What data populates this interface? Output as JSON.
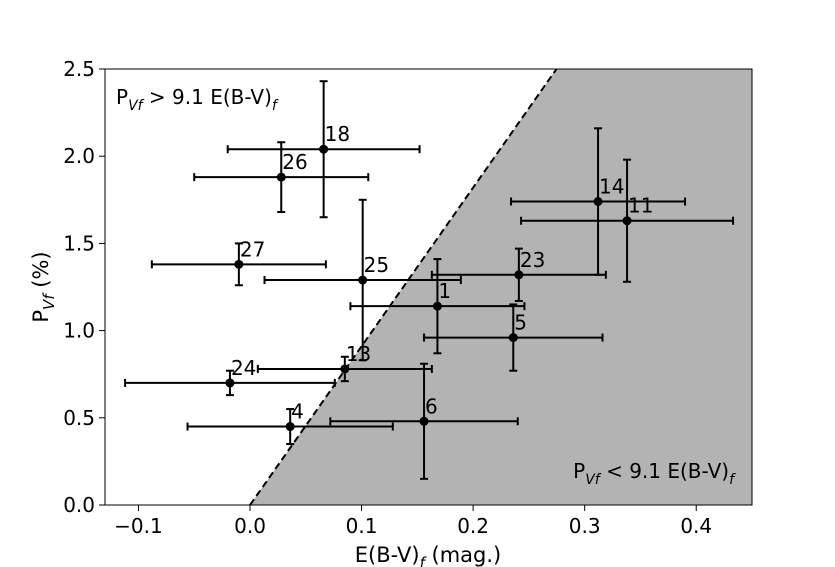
{
  "chart_data": {
    "type": "scatter",
    "xlabel": "E(B-V)",
    "xlabel_sub": "f",
    "xlabel_suffix": " (mag.)",
    "ylabel": "P",
    "ylabel_sub": "Vf",
    "ylabel_suffix": " (%)",
    "xlim": [
      -0.13,
      0.45
    ],
    "ylim": [
      0.0,
      2.5
    ],
    "xticks": [
      -0.1,
      0.0,
      0.1,
      0.2,
      0.3,
      0.4
    ],
    "xtick_labels": [
      "−0.1",
      "0.0",
      "0.1",
      "0.2",
      "0.3",
      "0.4"
    ],
    "yticks": [
      0.0,
      0.5,
      1.0,
      1.5,
      2.0,
      2.5
    ],
    "ytick_labels": [
      "0.0",
      "0.5",
      "1.0",
      "1.5",
      "2.0",
      "2.5"
    ],
    "grid": false,
    "boundary": {
      "slope": 9.1,
      "style": "dashed",
      "shaded_side": "below",
      "shade_color": "#b3b3b3"
    },
    "region_labels": {
      "upper": {
        "main": "P",
        "sub1": "Vf",
        "middle": " > 9.1 E(B-V)",
        "sub2": "f"
      },
      "lower": {
        "main": "P",
        "sub1": "Vf",
        "middle": " < 9.1 E(B-V)",
        "sub2": "f"
      }
    },
    "points": [
      {
        "label": "18",
        "x": 0.066,
        "y": 2.04,
        "xerr": 0.086,
        "yerr": 0.39
      },
      {
        "label": "26",
        "x": 0.028,
        "y": 1.88,
        "xerr": 0.078,
        "yerr": 0.2
      },
      {
        "label": "14",
        "x": 0.312,
        "y": 1.74,
        "xerr": 0.078,
        "yerr": 0.42
      },
      {
        "label": "11",
        "x": 0.338,
        "y": 1.63,
        "xerr": 0.095,
        "yerr": 0.35
      },
      {
        "label": "27",
        "x": -0.01,
        "y": 1.38,
        "xerr": 0.078,
        "yerr": 0.12
      },
      {
        "label": "25",
        "x": 0.101,
        "y": 1.29,
        "xerr": 0.088,
        "yerr": 0.46
      },
      {
        "label": "23",
        "x": 0.241,
        "y": 1.32,
        "xerr": 0.078,
        "yerr": 0.15
      },
      {
        "label": "1",
        "x": 0.168,
        "y": 1.14,
        "xerr": 0.078,
        "yerr": 0.27
      },
      {
        "label": "5",
        "x": 0.236,
        "y": 0.96,
        "xerr": 0.08,
        "yerr": 0.19
      },
      {
        "label": "13",
        "x": 0.085,
        "y": 0.78,
        "xerr": 0.078,
        "yerr": 0.07
      },
      {
        "label": "24",
        "x": -0.018,
        "y": 0.7,
        "xerr": 0.094,
        "yerr": 0.07
      },
      {
        "label": "6",
        "x": 0.156,
        "y": 0.48,
        "xerr": 0.084,
        "yerr": 0.33
      },
      {
        "label": "4",
        "x": 0.036,
        "y": 0.45,
        "xerr": 0.092,
        "yerr": 0.1
      }
    ]
  }
}
